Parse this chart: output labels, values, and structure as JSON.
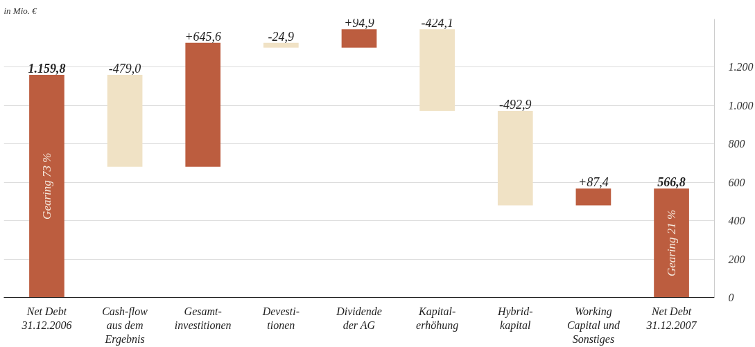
{
  "chart_data": {
    "type": "bar",
    "title": "in Mio. €",
    "categories": [
      "Net Debt\n31.12.2006",
      "Cash-flow\naus dem\nErgebnis",
      "Gesamt-\ninvestitionen",
      "Devesti-\ntionen",
      "Dividende\nder AG",
      "Kapital-\nerhöhung",
      "Hybrid-\nkapital",
      "Working\nCapital und\nSonstiges",
      "Net Debt\n31.12.2007"
    ],
    "base": [
      0,
      1159.8,
      680.8,
      1326.4,
      1301.5,
      1396.4,
      972.3,
      479.4,
      0
    ],
    "values": [
      1159.8,
      -479.0,
      645.6,
      -24.9,
      94.9,
      -424.1,
      -492.9,
      87.4,
      566.8
    ],
    "colors": [
      "#bc5d3f",
      "#f0e2c5",
      "#bc5d3f",
      "#f0e2c5",
      "#bc5d3f",
      "#f0e2c5",
      "#f0e2c5",
      "#bc5d3f",
      "#bc5d3f"
    ],
    "value_labels": [
      "1.159,8",
      "-479,0",
      "+645,6",
      "-24,9",
      "+94,9",
      "-424,1",
      "-492,9",
      "+87,4",
      "566,8"
    ],
    "annotations": [
      "Gearing 73 %",
      "Gearing 21 %"
    ],
    "ylim": [
      0,
      1450
    ],
    "yticks": [
      0,
      200,
      400,
      600,
      800,
      {
        "value": 1000,
        "label": "1.000"
      },
      {
        "value": 1200,
        "label": "1.200"
      }
    ],
    "grid": "y"
  }
}
